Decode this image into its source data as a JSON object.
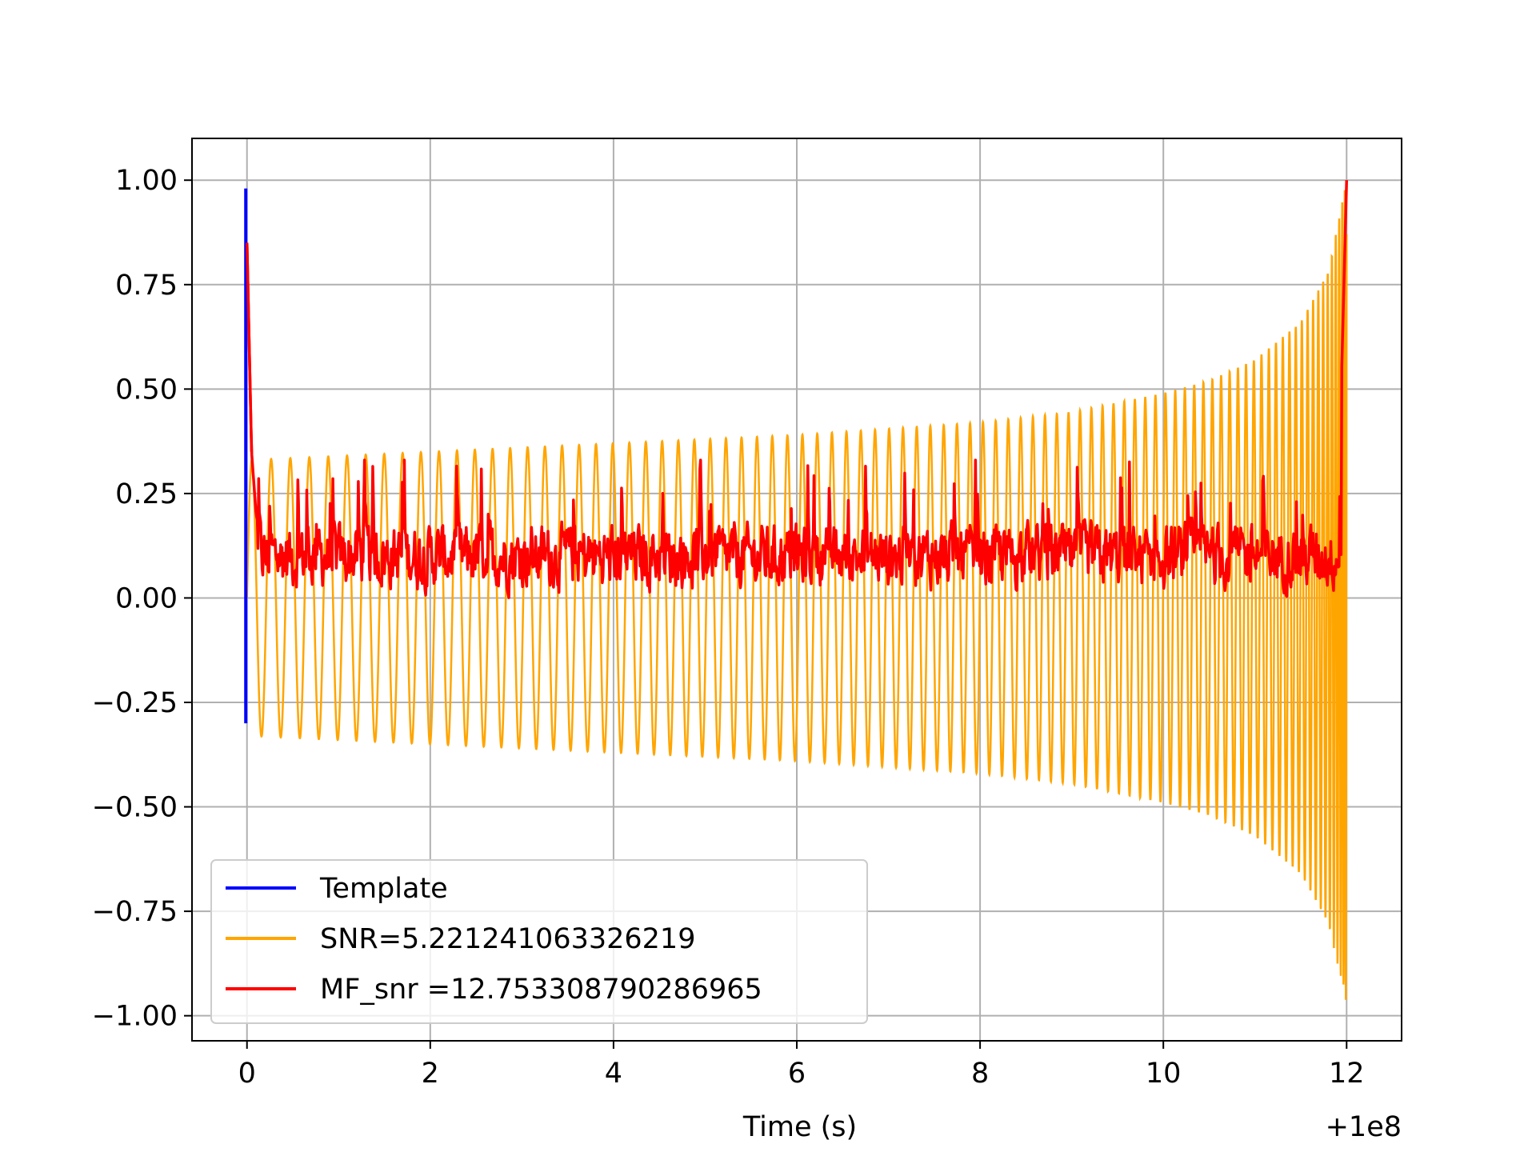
{
  "chart_data": {
    "type": "line",
    "xlabel": "Time (s)",
    "ylabel": "",
    "x_offset_label": "+1e8",
    "xlim": [
      -0.6,
      12.6
    ],
    "ylim": [
      -1.06,
      1.1
    ],
    "x_ticks": [
      {
        "value": 0,
        "label": "0"
      },
      {
        "value": 2,
        "label": "2"
      },
      {
        "value": 4,
        "label": "4"
      },
      {
        "value": 6,
        "label": "6"
      },
      {
        "value": 8,
        "label": "8"
      },
      {
        "value": 10,
        "label": "10"
      },
      {
        "value": 12,
        "label": "12"
      }
    ],
    "y_ticks": [
      {
        "value": 1.0,
        "label": "1.00"
      },
      {
        "value": 0.75,
        "label": "0.75"
      },
      {
        "value": 0.5,
        "label": "0.50"
      },
      {
        "value": 0.25,
        "label": "0.25"
      },
      {
        "value": 0.0,
        "label": "0.00"
      },
      {
        "value": -0.25,
        "label": "−0.25"
      },
      {
        "value": -0.5,
        "label": "−0.50"
      },
      {
        "value": -0.75,
        "label": "−0.75"
      },
      {
        "value": -1.0,
        "label": "−1.00"
      }
    ],
    "grid": true,
    "legend_position": "lower-left",
    "series": [
      {
        "name": "Template",
        "color": "#0000ff",
        "x": [
          0.0,
          0.0,
          0.0
        ],
        "y": [
          -0.3,
          0.98,
          0.0
        ]
      },
      {
        "name": "SNR=5.221241063326219",
        "color": "#ffa500",
        "envelope": {
          "x": [
            0.0,
            0.5,
            2,
            4,
            6,
            8,
            9,
            10,
            10.5,
            11,
            11.5,
            11.8,
            12.0
          ],
          "upper": [
            0.33,
            0.335,
            0.35,
            0.37,
            0.39,
            0.42,
            0.445,
            0.49,
            0.52,
            0.57,
            0.66,
            0.78,
            1.0
          ],
          "lower": [
            -0.33,
            -0.335,
            -0.35,
            -0.37,
            -0.39,
            -0.42,
            -0.445,
            -0.49,
            -0.52,
            -0.57,
            -0.66,
            -0.78,
            -0.97
          ]
        }
      },
      {
        "name": "MF_snr =12.753308790286965",
        "color": "#ff0000",
        "x": [
          0.0,
          0.05,
          0.1,
          0.2,
          1.0,
          2.0,
          3.0,
          4.0,
          5.0,
          6.0,
          7.0,
          8.0,
          9.0,
          10.0,
          11.0,
          11.9,
          12.0
        ],
        "y": [
          0.85,
          0.35,
          0.2,
          0.1,
          0.1,
          0.1,
          0.1,
          0.1,
          0.1,
          0.1,
          0.1,
          0.1,
          0.1,
          0.1,
          0.1,
          0.15,
          1.0
        ],
        "noise_range": [
          0.0,
          0.33
        ]
      }
    ]
  }
}
